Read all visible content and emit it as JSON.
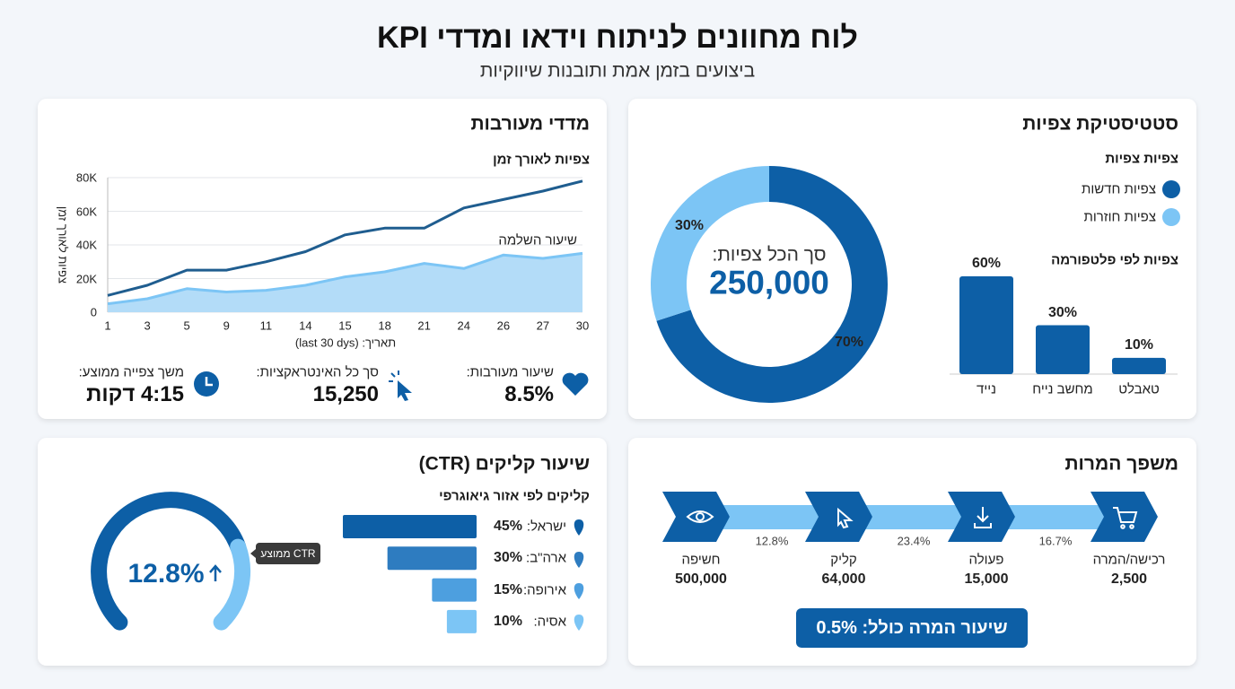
{
  "header": {
    "title": "לוח מחוונים לניתוח וידאו ומדדי KPI",
    "subtitle": "ביצועים בזמן אמת ותובנות שיווקיות"
  },
  "views_panel": {
    "title": "סטטיסטיקת צפיות",
    "legend_title": "צפיות צפיות",
    "total_label": "סך הכל צפיות:",
    "total": "250,000",
    "platform_title": "צפיות לפי פלטפורמה"
  },
  "engagement_panel": {
    "title": "מדדי מעורבות",
    "kpis": [
      {
        "label": "שיעור מעורבות:",
        "value": "8.5%"
      },
      {
        "label": "סך כל האינטראקציות:",
        "value": "15,250"
      },
      {
        "label": "משך צפייה ממוצע:",
        "value": "4:15 דקות"
      }
    ]
  },
  "ctr_panel": {
    "title": "שיעור קליקים (CTR)",
    "value": "12.8%",
    "tooltip": "CTR ממוצע",
    "geo_title": "קליקים לפי אזור גיאוגרפי"
  },
  "funnel_panel": {
    "title": "משפך המרות",
    "stages": [
      {
        "label": "חשיפה",
        "value": "500,000"
      },
      {
        "label": "קליק",
        "value": "64,000"
      },
      {
        "label": "פעולה",
        "value": "15,000"
      },
      {
        "label": "רכישה/המרה",
        "value": "2,500"
      }
    ],
    "rates": [
      "12.8%",
      "23.4%",
      "16.7%"
    ],
    "overall": "שיעור המרה כולל: 0.5%"
  },
  "chart_data": [
    {
      "type": "pie",
      "donut": true,
      "categories": [
        "צפיות חדשות",
        "צפיות חוזרות"
      ],
      "values": [
        70,
        30
      ],
      "value_labels": [
        "70%",
        "30%"
      ],
      "colors": [
        "#0d5fa6",
        "#7cc5f5"
      ]
    },
    {
      "type": "bar",
      "categories": [
        "נייד",
        "מחשב נייח",
        "טאבלט"
      ],
      "values": [
        60,
        30,
        10
      ],
      "value_labels": [
        "60%",
        "30%",
        "10%"
      ],
      "color": "#0d5fa6"
    },
    {
      "type": "line",
      "title": "צפיות לאורך זמן",
      "x_label": "תאריך: (last 30 dys)",
      "y_label": "צפיות לאורך זמן",
      "categories": [
        "1",
        "3",
        "5",
        "9",
        "11",
        "14",
        "15",
        "18",
        "21",
        "24",
        "26",
        "27",
        "30"
      ],
      "series": [
        {
          "color": "#1f5d8f",
          "values": [
            10000,
            16000,
            25000,
            25000,
            30000,
            36000,
            46000,
            50000,
            50000,
            62000,
            67000,
            72000,
            78000
          ]
        },
        {
          "name": "שיעור השלמה",
          "color": "#7cc5f5",
          "fill": "#b3dcf8",
          "values": [
            5000,
            8000,
            14000,
            12000,
            13000,
            16000,
            21000,
            24000,
            29000,
            26000,
            34000,
            32000,
            35000
          ]
        }
      ],
      "ylim": [
        0,
        80000
      ],
      "yticks": [
        0,
        {
          "value": 20000,
          "label": "20K"
        },
        {
          "value": 40000,
          "label": "40K"
        },
        {
          "value": 60000,
          "label": "60K"
        },
        {
          "value": 80000,
          "label": "80K"
        }
      ],
      "grid": true
    },
    {
      "type": "hbar",
      "categories": [
        "ישראל:",
        "ארה\"ב:",
        "אירופה:",
        "אסיה:"
      ],
      "values": [
        45,
        30,
        15,
        10
      ],
      "value_labels": [
        "45%",
        "30%",
        "15%",
        "10%"
      ],
      "colors": [
        "#0d5fa6",
        "#2e7cc0",
        "#4d9fdf",
        "#7cc5f5"
      ]
    }
  ]
}
